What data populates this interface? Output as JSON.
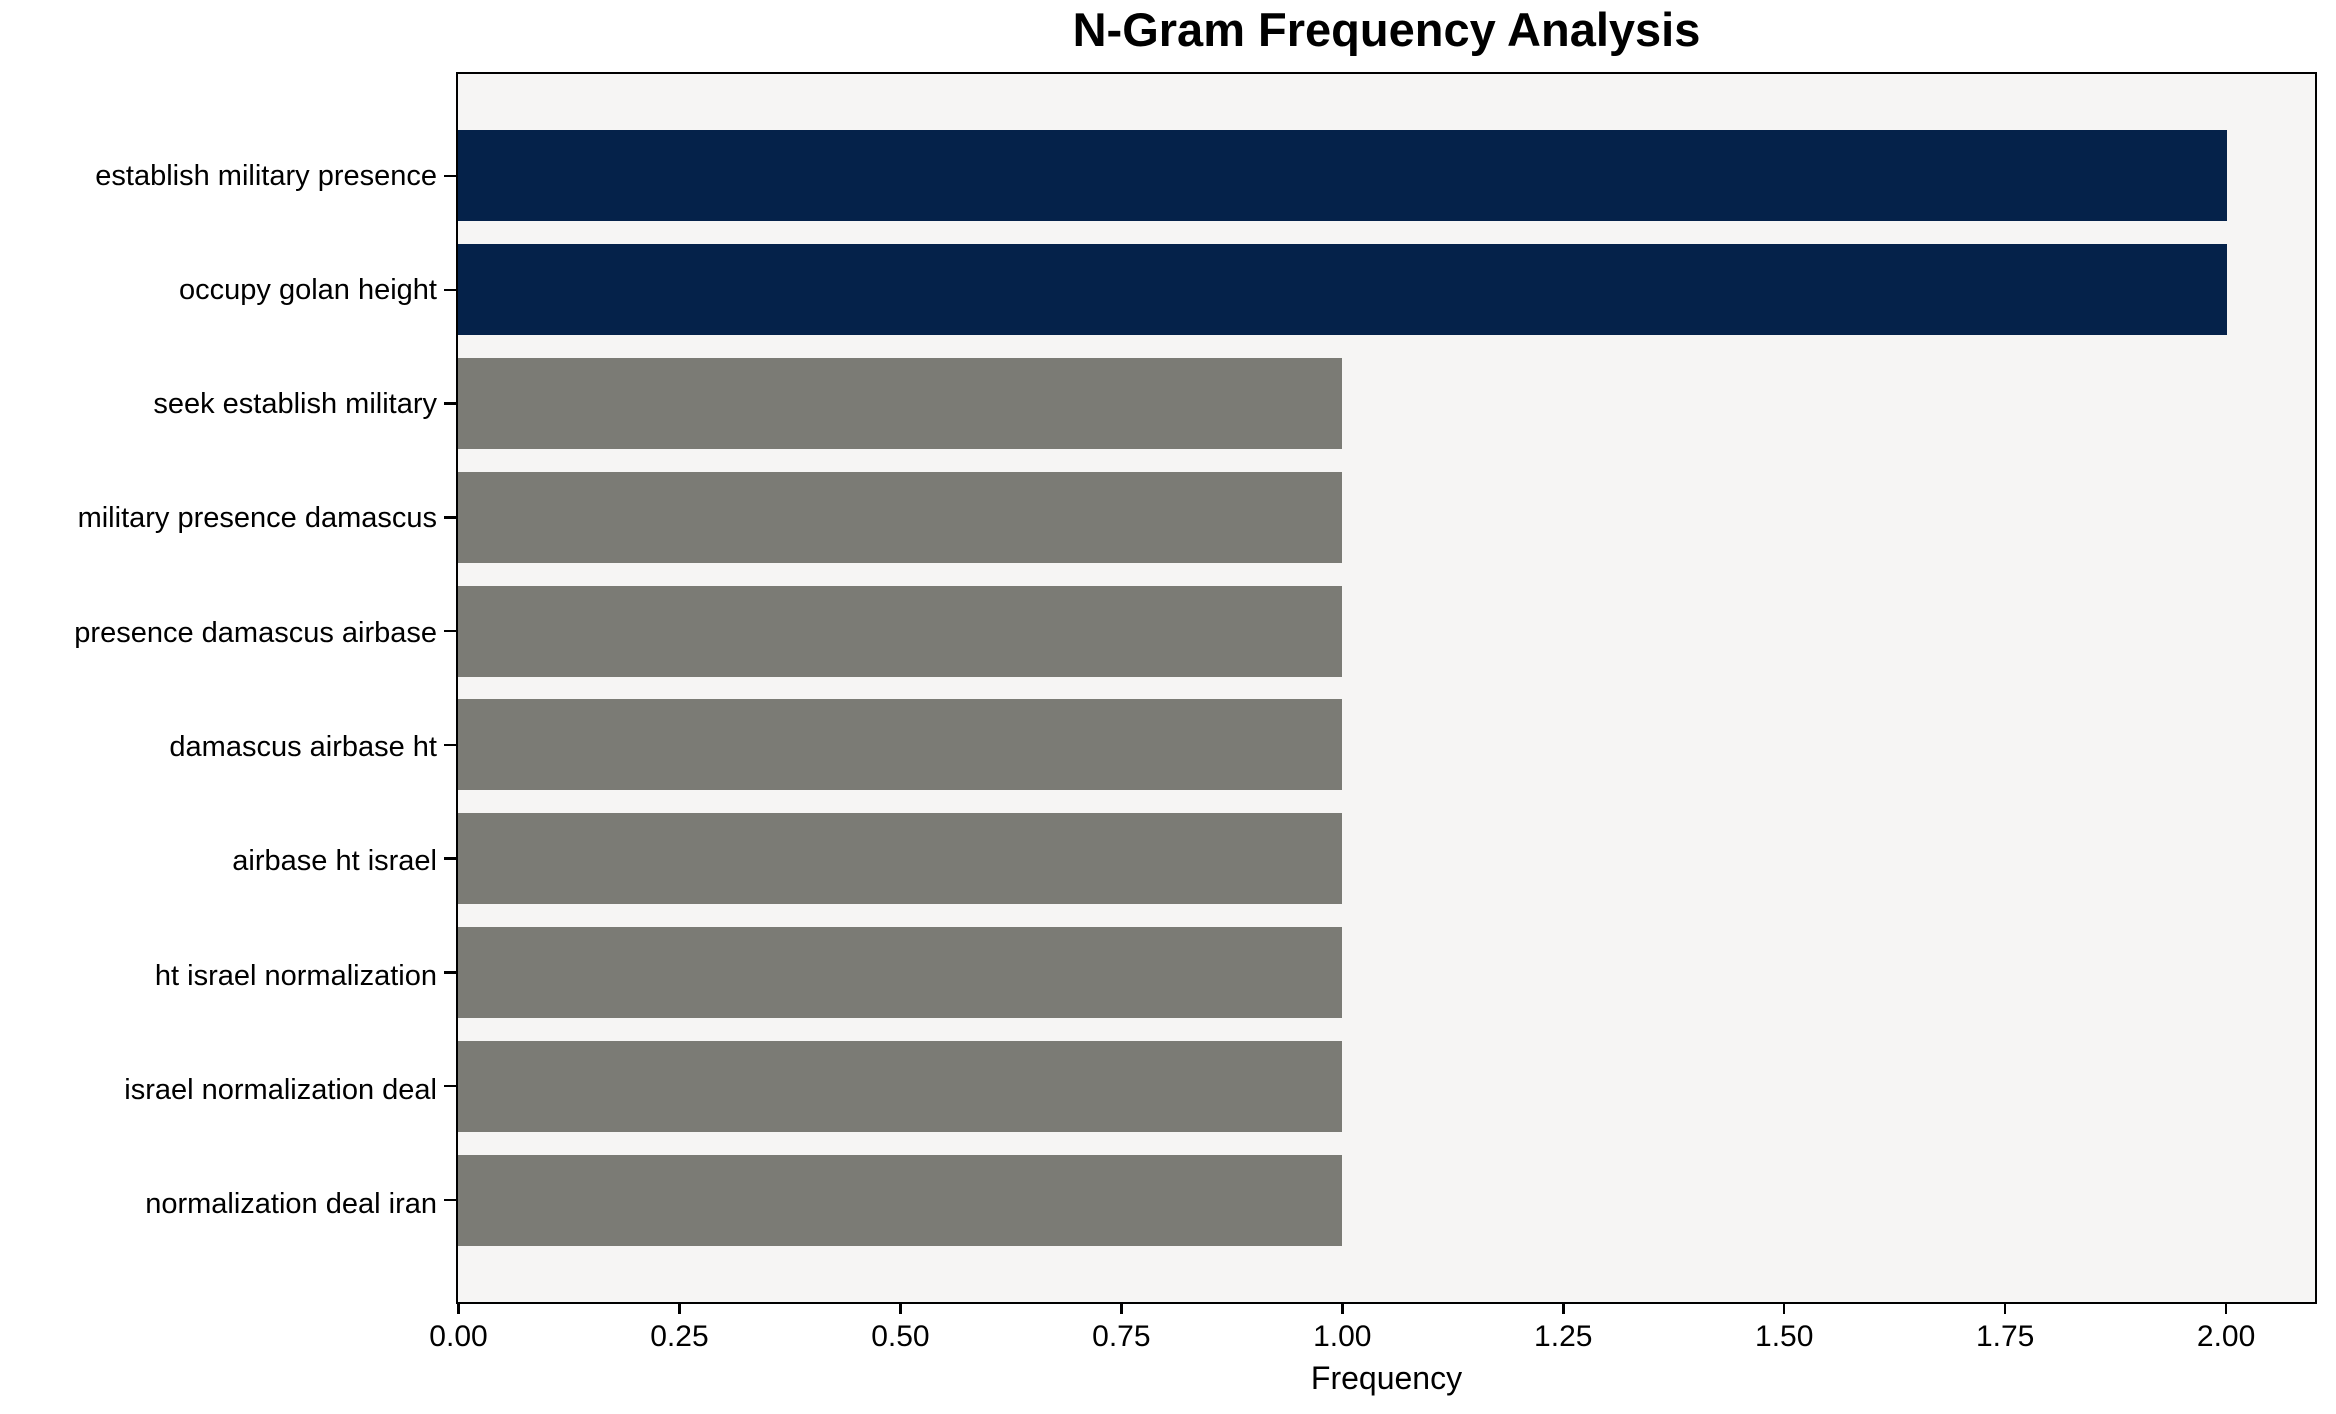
{
  "chart_data": {
    "type": "bar",
    "orientation": "horizontal",
    "title": "N-Gram Frequency Analysis",
    "xlabel": "Frequency",
    "ylabel": "",
    "categories": [
      "establish military presence",
      "occupy golan height",
      "seek establish military",
      "military presence damascus",
      "presence damascus airbase",
      "damascus airbase ht",
      "airbase ht israel",
      "ht israel normalization",
      "israel normalization deal",
      "normalization deal iran"
    ],
    "values": [
      2,
      2,
      1,
      1,
      1,
      1,
      1,
      1,
      1,
      1
    ],
    "bar_colors": [
      "#05224a",
      "#05224a",
      "#7b7b75",
      "#7b7b75",
      "#7b7b75",
      "#7b7b75",
      "#7b7b75",
      "#7b7b75",
      "#7b7b75",
      "#7b7b75"
    ],
    "xlim": [
      0,
      2.1
    ],
    "x_ticks": [
      {
        "value": 0.0,
        "label": "0.00"
      },
      {
        "value": 0.25,
        "label": "0.25"
      },
      {
        "value": 0.5,
        "label": "0.50"
      },
      {
        "value": 0.75,
        "label": "0.75"
      },
      {
        "value": 1.0,
        "label": "1.00"
      },
      {
        "value": 1.25,
        "label": "1.25"
      },
      {
        "value": 1.5,
        "label": "1.50"
      },
      {
        "value": 1.75,
        "label": "1.75"
      },
      {
        "value": 2.0,
        "label": "2.00"
      }
    ],
    "grid": "off",
    "legend": "none",
    "colors": {
      "highlight": "#05224a",
      "muted": "#7b7b75",
      "plot_background": "#f6f5f4",
      "spine": "#000000",
      "text": "#000000",
      "figure_background": "#ffffff"
    }
  }
}
